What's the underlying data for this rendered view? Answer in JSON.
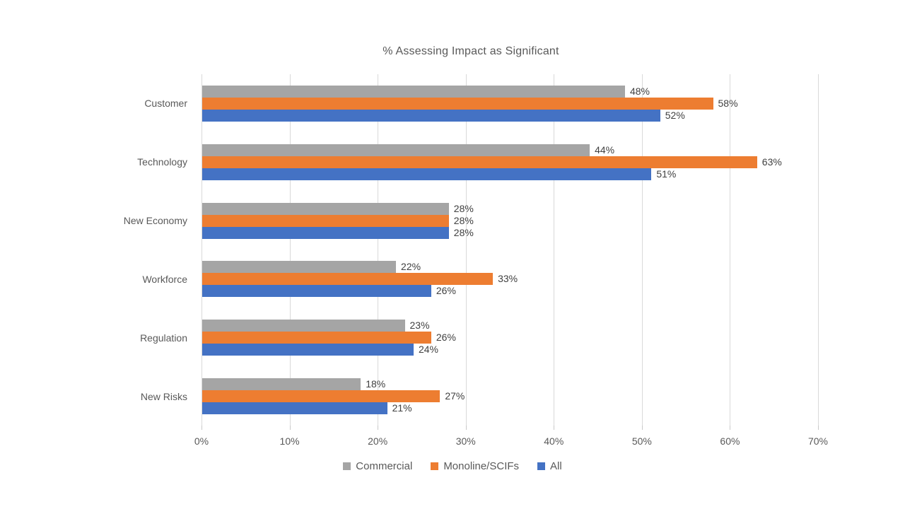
{
  "chart_data": {
    "type": "bar",
    "orientation": "horizontal",
    "title": "% Assessing Impact as Significant",
    "categories": [
      "Customer",
      "Technology",
      "New Economy",
      "Workforce",
      "Regulation",
      "New Risks"
    ],
    "series": [
      {
        "name": "Commercial",
        "color": "#A5A5A5",
        "values": [
          48,
          44,
          28,
          22,
          23,
          18
        ]
      },
      {
        "name": "Monoline/SCIFs",
        "color": "#ED7D31",
        "values": [
          58,
          63,
          28,
          33,
          26,
          27
        ]
      },
      {
        "name": "All",
        "color": "#4472C4",
        "values": [
          52,
          51,
          28,
          26,
          24,
          21
        ]
      }
    ],
    "data_labels": {
      "visible": true,
      "suffix": "%"
    },
    "x_axis": {
      "min": 0,
      "max": 70,
      "tick_step": 10,
      "tick_labels": [
        "0%",
        "10%",
        "20%",
        "30%",
        "40%",
        "50%",
        "60%",
        "70%"
      ]
    },
    "gridlines": {
      "visible": true,
      "color": "#D9D9D9"
    },
    "legend": {
      "position": "bottom",
      "entries": [
        "Commercial",
        "Monoline/SCIFs",
        "All"
      ]
    },
    "style": {
      "title_color": "#595959",
      "axis_text_color": "#595959",
      "data_label_color": "#404040",
      "background": "#FFFFFF"
    }
  }
}
